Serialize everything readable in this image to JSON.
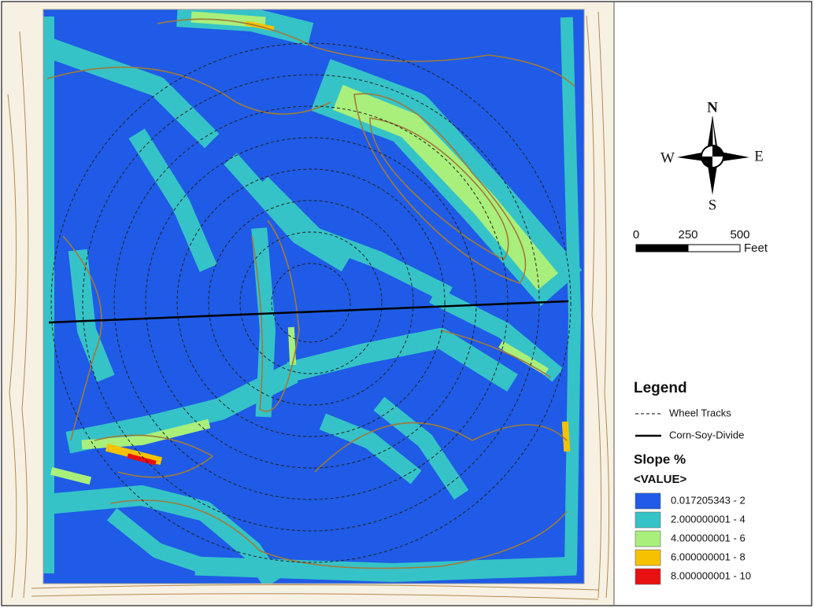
{
  "compass": {
    "n": "N",
    "s": "S",
    "e": "E",
    "w": "W"
  },
  "scale_bar": {
    "ticks": [
      0,
      250,
      500
    ],
    "unit": "Feet"
  },
  "legend": {
    "title": "Legend",
    "lines": [
      {
        "label": "Wheel Tracks",
        "style": "dashed"
      },
      {
        "label": "Corn-Soy-Divide",
        "style": "solid"
      }
    ],
    "raster_title": "Slope %",
    "field": "<VALUE>",
    "classes": [
      {
        "label": "0.017205343 - 2",
        "color": "#1f5be6"
      },
      {
        "label": "2.000000001 - 4",
        "color": "#35c3c8"
      },
      {
        "label": "4.000000001 - 6",
        "color": "#a9ef7c"
      },
      {
        "label": "6.000000001 - 8",
        "color": "#f6c200"
      },
      {
        "label": "8.000000001 - 10",
        "color": "#e81010"
      }
    ]
  }
}
